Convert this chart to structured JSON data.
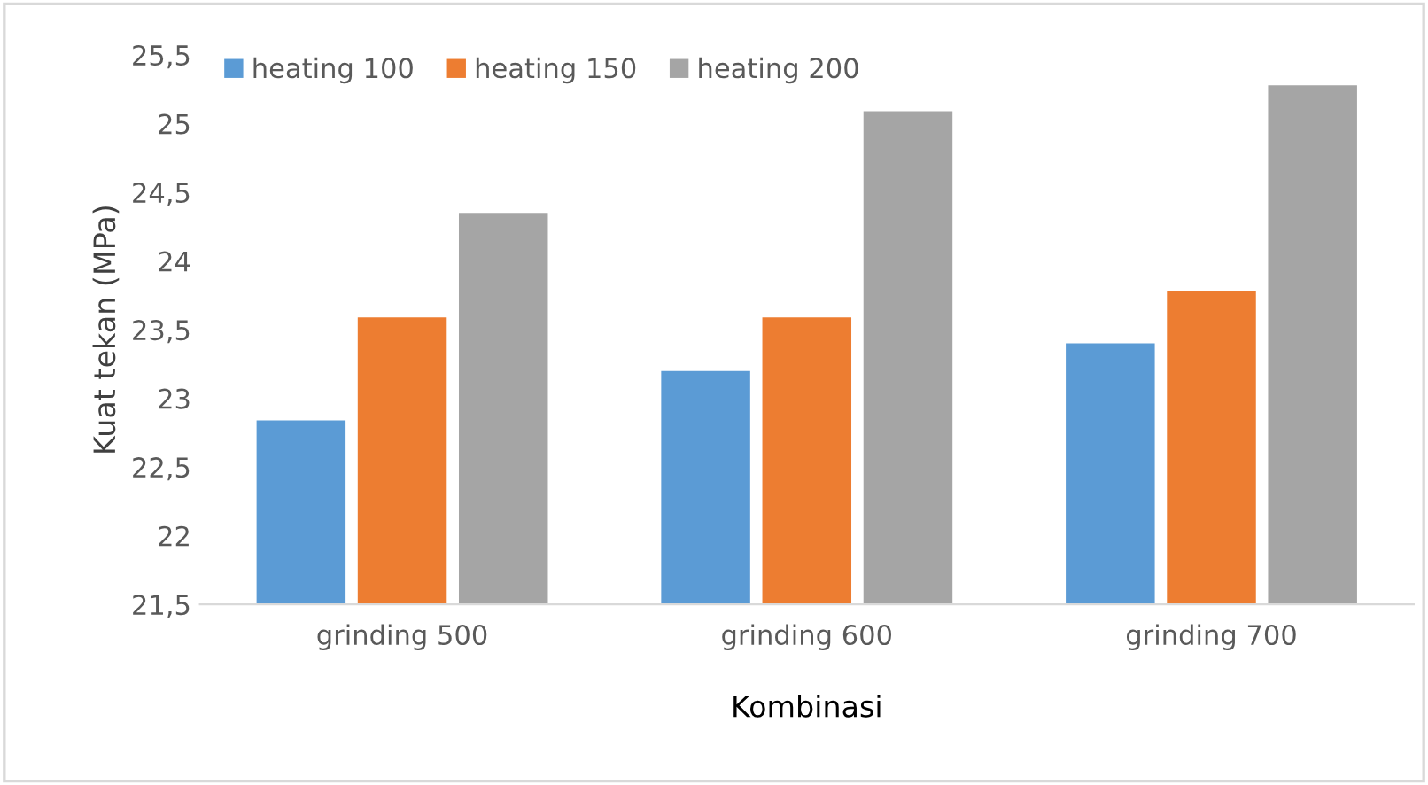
{
  "chart_data": {
    "type": "bar",
    "xlabel": "Kombinasi",
    "ylabel": "Kuat tekan (MPa)",
    "categories": [
      "grinding 500",
      "grinding 600",
      "grinding 700"
    ],
    "series": [
      {
        "name": "heating 100",
        "color": "#5b9bd5",
        "values": [
          22.84,
          23.2,
          23.4
        ]
      },
      {
        "name": "heating 150",
        "color": "#ed7d31",
        "values": [
          23.59,
          23.59,
          23.78
        ]
      },
      {
        "name": "heating 200",
        "color": "#a5a5a5",
        "values": [
          24.35,
          25.09,
          25.28
        ]
      }
    ],
    "ylim": [
      21.5,
      25.5
    ],
    "yticks": [
      {
        "value": 21.5,
        "label": "21,5"
      },
      22,
      {
        "value": 22.5,
        "label": "22,5"
      },
      23,
      {
        "value": 23.5,
        "label": "23,5"
      },
      24,
      {
        "value": 24.5,
        "label": "24,5"
      },
      25,
      {
        "value": 25.5,
        "label": "25,5"
      }
    ],
    "grid": false,
    "legend": "top left"
  }
}
